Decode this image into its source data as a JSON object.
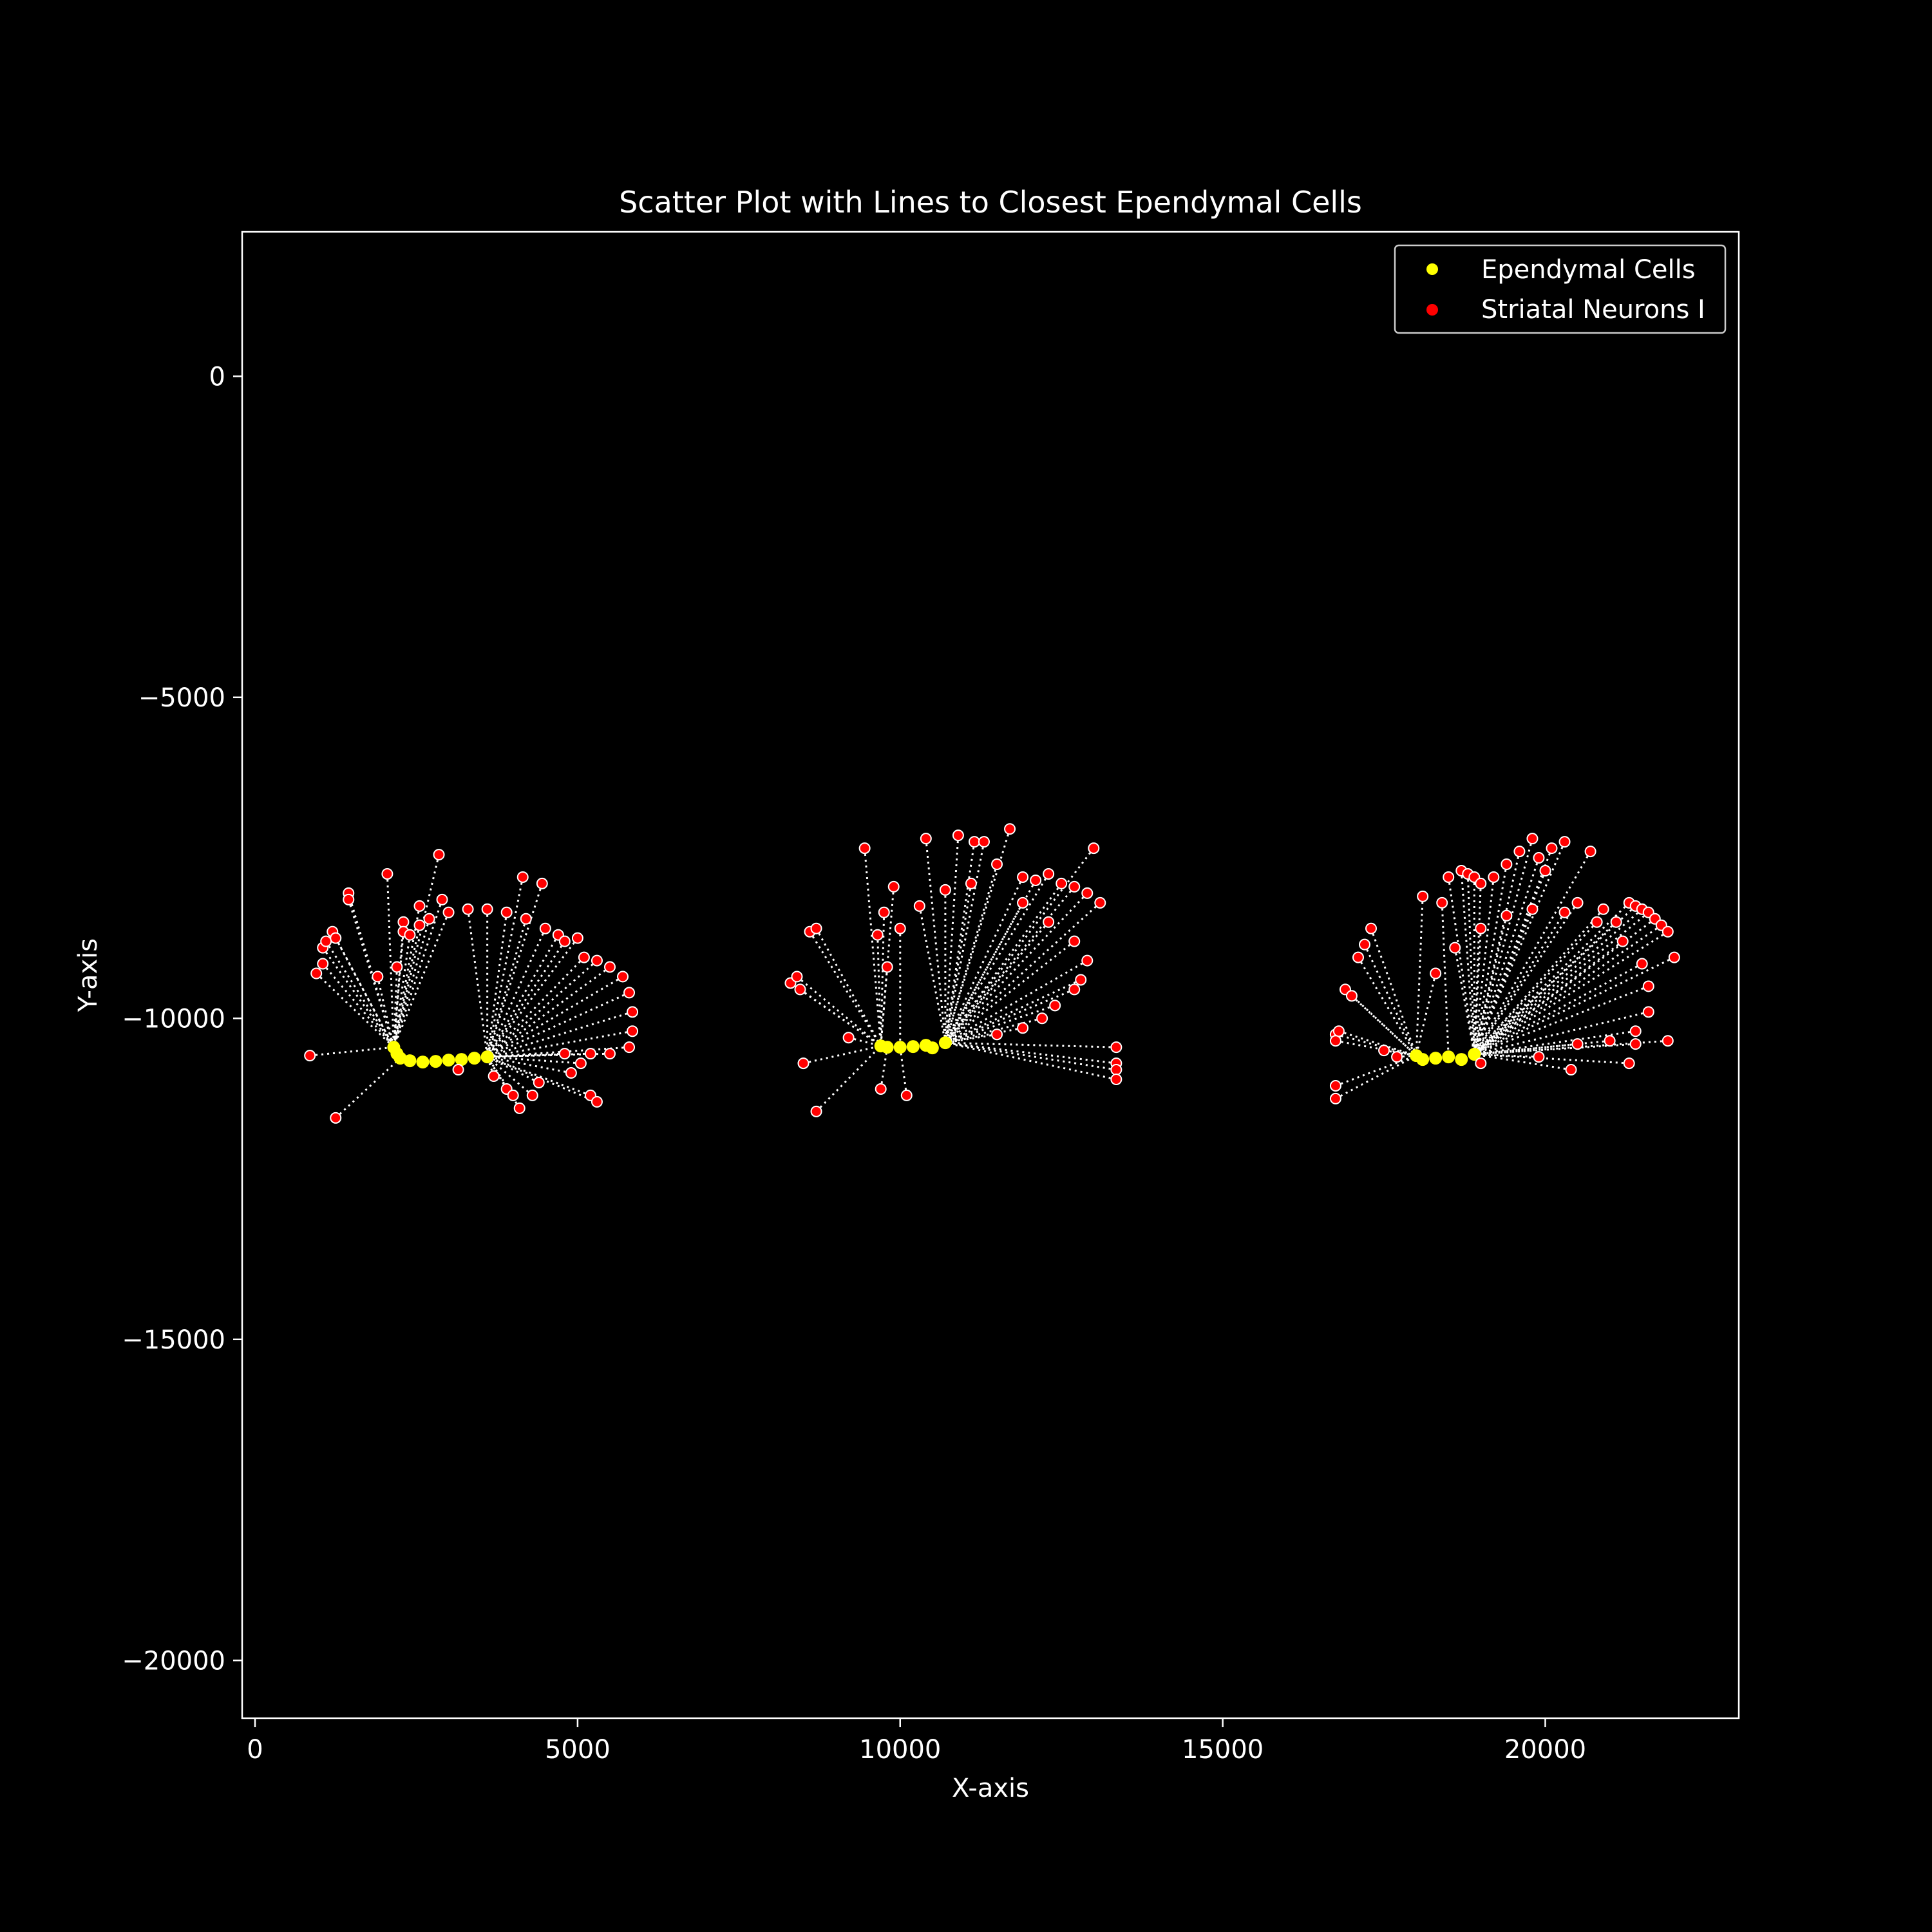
{
  "chart_data": {
    "type": "scatter",
    "title": "Scatter Plot with Lines to Closest Ependymal Cells",
    "xlabel": "X-axis",
    "ylabel": "Y-axis",
    "xlim": [
      -200,
      23000
    ],
    "ylim": [
      -20900,
      2250
    ],
    "xticks": [
      0,
      5000,
      10000,
      15000,
      20000
    ],
    "yticks": [
      0,
      -5000,
      -10000,
      -15000,
      -20000
    ],
    "grid": false,
    "legend_position": "upper right",
    "background": "#000000",
    "colors": {
      "ependymal": "#ffff00",
      "neurons": "#ff0000",
      "lines": "#ffffff",
      "axes": "#ffffff"
    },
    "series": [
      {
        "name": "Ependymal Cells",
        "color": "#ffff00",
        "points": [
          [
            2150,
            -10450
          ],
          [
            2200,
            -10550
          ],
          [
            2250,
            -10620
          ],
          [
            2400,
            -10660
          ],
          [
            2600,
            -10680
          ],
          [
            2800,
            -10670
          ],
          [
            3000,
            -10650
          ],
          [
            3200,
            -10640
          ],
          [
            3400,
            -10620
          ],
          [
            3600,
            -10600
          ],
          [
            9700,
            -10430
          ],
          [
            9800,
            -10450
          ],
          [
            10000,
            -10450
          ],
          [
            10200,
            -10440
          ],
          [
            10400,
            -10420
          ],
          [
            10500,
            -10460
          ],
          [
            10700,
            -10380
          ],
          [
            18000,
            -10580
          ],
          [
            18100,
            -10640
          ],
          [
            18300,
            -10620
          ],
          [
            18500,
            -10600
          ],
          [
            18700,
            -10640
          ],
          [
            18900,
            -10560
          ]
        ]
      },
      {
        "name": "Striatal Neurons I",
        "color": "#ff0000",
        "points": [
          [
            850,
            -10580
          ],
          [
            950,
            -9300
          ],
          [
            1050,
            -9150
          ],
          [
            1050,
            -8900
          ],
          [
            1100,
            -8800
          ],
          [
            1200,
            -8650
          ],
          [
            1250,
            -8750
          ],
          [
            1250,
            -11550
          ],
          [
            1450,
            -8050
          ],
          [
            1450,
            -8150
          ],
          [
            1900,
            -9350
          ],
          [
            2050,
            -7750
          ],
          [
            2200,
            -9200
          ],
          [
            2300,
            -8500
          ],
          [
            2300,
            -8650
          ],
          [
            2550,
            -8250
          ],
          [
            2550,
            -8550
          ],
          [
            2850,
            -7450
          ],
          [
            2900,
            -8150
          ],
          [
            3150,
            -10800
          ],
          [
            3700,
            -10900
          ],
          [
            3900,
            -11100
          ],
          [
            4000,
            -11200
          ],
          [
            4100,
            -11400
          ],
          [
            4150,
            -7800
          ],
          [
            4300,
            -11200
          ],
          [
            4400,
            -11000
          ],
          [
            4450,
            -7900
          ],
          [
            4700,
            -8700
          ],
          [
            4900,
            -10850
          ],
          [
            5000,
            -8750
          ],
          [
            5050,
            -10700
          ],
          [
            5200,
            -11200
          ],
          [
            5300,
            -11300
          ],
          [
            2400,
            -8700
          ],
          [
            2700,
            -8450
          ],
          [
            3000,
            -8350
          ],
          [
            3300,
            -8300
          ],
          [
            3600,
            -8300
          ],
          [
            3900,
            -8350
          ],
          [
            4200,
            -8450
          ],
          [
            4500,
            -8600
          ],
          [
            4800,
            -8800
          ],
          [
            5100,
            -9050
          ],
          [
            5300,
            -9100
          ],
          [
            5500,
            -9200
          ],
          [
            5700,
            -9350
          ],
          [
            5800,
            -9600
          ],
          [
            5850,
            -9900
          ],
          [
            5850,
            -10200
          ],
          [
            5800,
            -10450
          ],
          [
            5500,
            -10550
          ],
          [
            5200,
            -10550
          ],
          [
            4800,
            -10550
          ],
          [
            8300,
            -9450
          ],
          [
            8400,
            -9350
          ],
          [
            8450,
            -9550
          ],
          [
            8500,
            -10700
          ],
          [
            8600,
            -8650
          ],
          [
            8700,
            -11450
          ],
          [
            8700,
            -8600
          ],
          [
            9200,
            -10300
          ],
          [
            9450,
            -7350
          ],
          [
            9650,
            -8700
          ],
          [
            9700,
            -11100
          ],
          [
            9750,
            -8350
          ],
          [
            9900,
            -7950
          ],
          [
            10100,
            -11200
          ],
          [
            10400,
            -7200
          ],
          [
            10900,
            -7150
          ],
          [
            11150,
            -7250
          ],
          [
            11300,
            -7250
          ],
          [
            11700,
            -7050
          ],
          [
            11900,
            -7800
          ],
          [
            12100,
            -7850
          ],
          [
            12300,
            -7750
          ],
          [
            12500,
            -7900
          ],
          [
            12700,
            -7950
          ],
          [
            12900,
            -8050
          ],
          [
            13000,
            -7350
          ],
          [
            13100,
            -8200
          ],
          [
            13350,
            -10450
          ],
          [
            13350,
            -10700
          ],
          [
            13350,
            -10800
          ],
          [
            13350,
            -10950
          ],
          [
            9800,
            -9200
          ],
          [
            10000,
            -8600
          ],
          [
            10300,
            -8250
          ],
          [
            10700,
            -8000
          ],
          [
            11100,
            -7900
          ],
          [
            11500,
            -7600
          ],
          [
            11900,
            -8200
          ],
          [
            12300,
            -8500
          ],
          [
            12700,
            -8800
          ],
          [
            12900,
            -9100
          ],
          [
            12800,
            -9400
          ],
          [
            12700,
            -9550
          ],
          [
            12400,
            -9800
          ],
          [
            12200,
            -10000
          ],
          [
            11900,
            -10150
          ],
          [
            11500,
            -10250
          ],
          [
            16750,
            -10250
          ],
          [
            16800,
            -10200
          ],
          [
            16750,
            -10350
          ],
          [
            16750,
            -11050
          ],
          [
            16750,
            -11250
          ],
          [
            16900,
            -9550
          ],
          [
            17000,
            -9650
          ],
          [
            17100,
            -9050
          ],
          [
            17200,
            -8850
          ],
          [
            17300,
            -8600
          ],
          [
            17500,
            -10500
          ],
          [
            17700,
            -10600
          ],
          [
            18100,
            -8100
          ],
          [
            18400,
            -8200
          ],
          [
            18500,
            -7800
          ],
          [
            18700,
            -7700
          ],
          [
            18800,
            -7750
          ],
          [
            18900,
            -7800
          ],
          [
            19000,
            -7900
          ],
          [
            19200,
            -7800
          ],
          [
            19400,
            -7600
          ],
          [
            19600,
            -7400
          ],
          [
            19800,
            -7200
          ],
          [
            19900,
            -7500
          ],
          [
            20000,
            -7700
          ],
          [
            20100,
            -7350
          ],
          [
            20300,
            -7250
          ],
          [
            20500,
            -8200
          ],
          [
            20700,
            -7400
          ],
          [
            20900,
            -8300
          ],
          [
            21100,
            -8500
          ],
          [
            21300,
            -8200
          ],
          [
            21400,
            -8250
          ],
          [
            21500,
            -8300
          ],
          [
            21600,
            -8350
          ],
          [
            21700,
            -8450
          ],
          [
            21800,
            -8550
          ],
          [
            21900,
            -8650
          ],
          [
            22000,
            -9050
          ],
          [
            21900,
            -10350
          ],
          [
            21400,
            -10400
          ],
          [
            21300,
            -10700
          ],
          [
            20400,
            -10800
          ],
          [
            19900,
            -10600
          ],
          [
            19000,
            -10700
          ],
          [
            18300,
            -9300
          ],
          [
            18600,
            -8900
          ],
          [
            19000,
            -8600
          ],
          [
            19400,
            -8400
          ],
          [
            19800,
            -8300
          ],
          [
            20300,
            -8350
          ],
          [
            20800,
            -8500
          ],
          [
            21200,
            -8800
          ],
          [
            21500,
            -9150
          ],
          [
            21600,
            -9500
          ],
          [
            21600,
            -9900
          ],
          [
            21400,
            -10200
          ],
          [
            21000,
            -10350
          ],
          [
            20500,
            -10400
          ]
        ]
      }
    ]
  }
}
